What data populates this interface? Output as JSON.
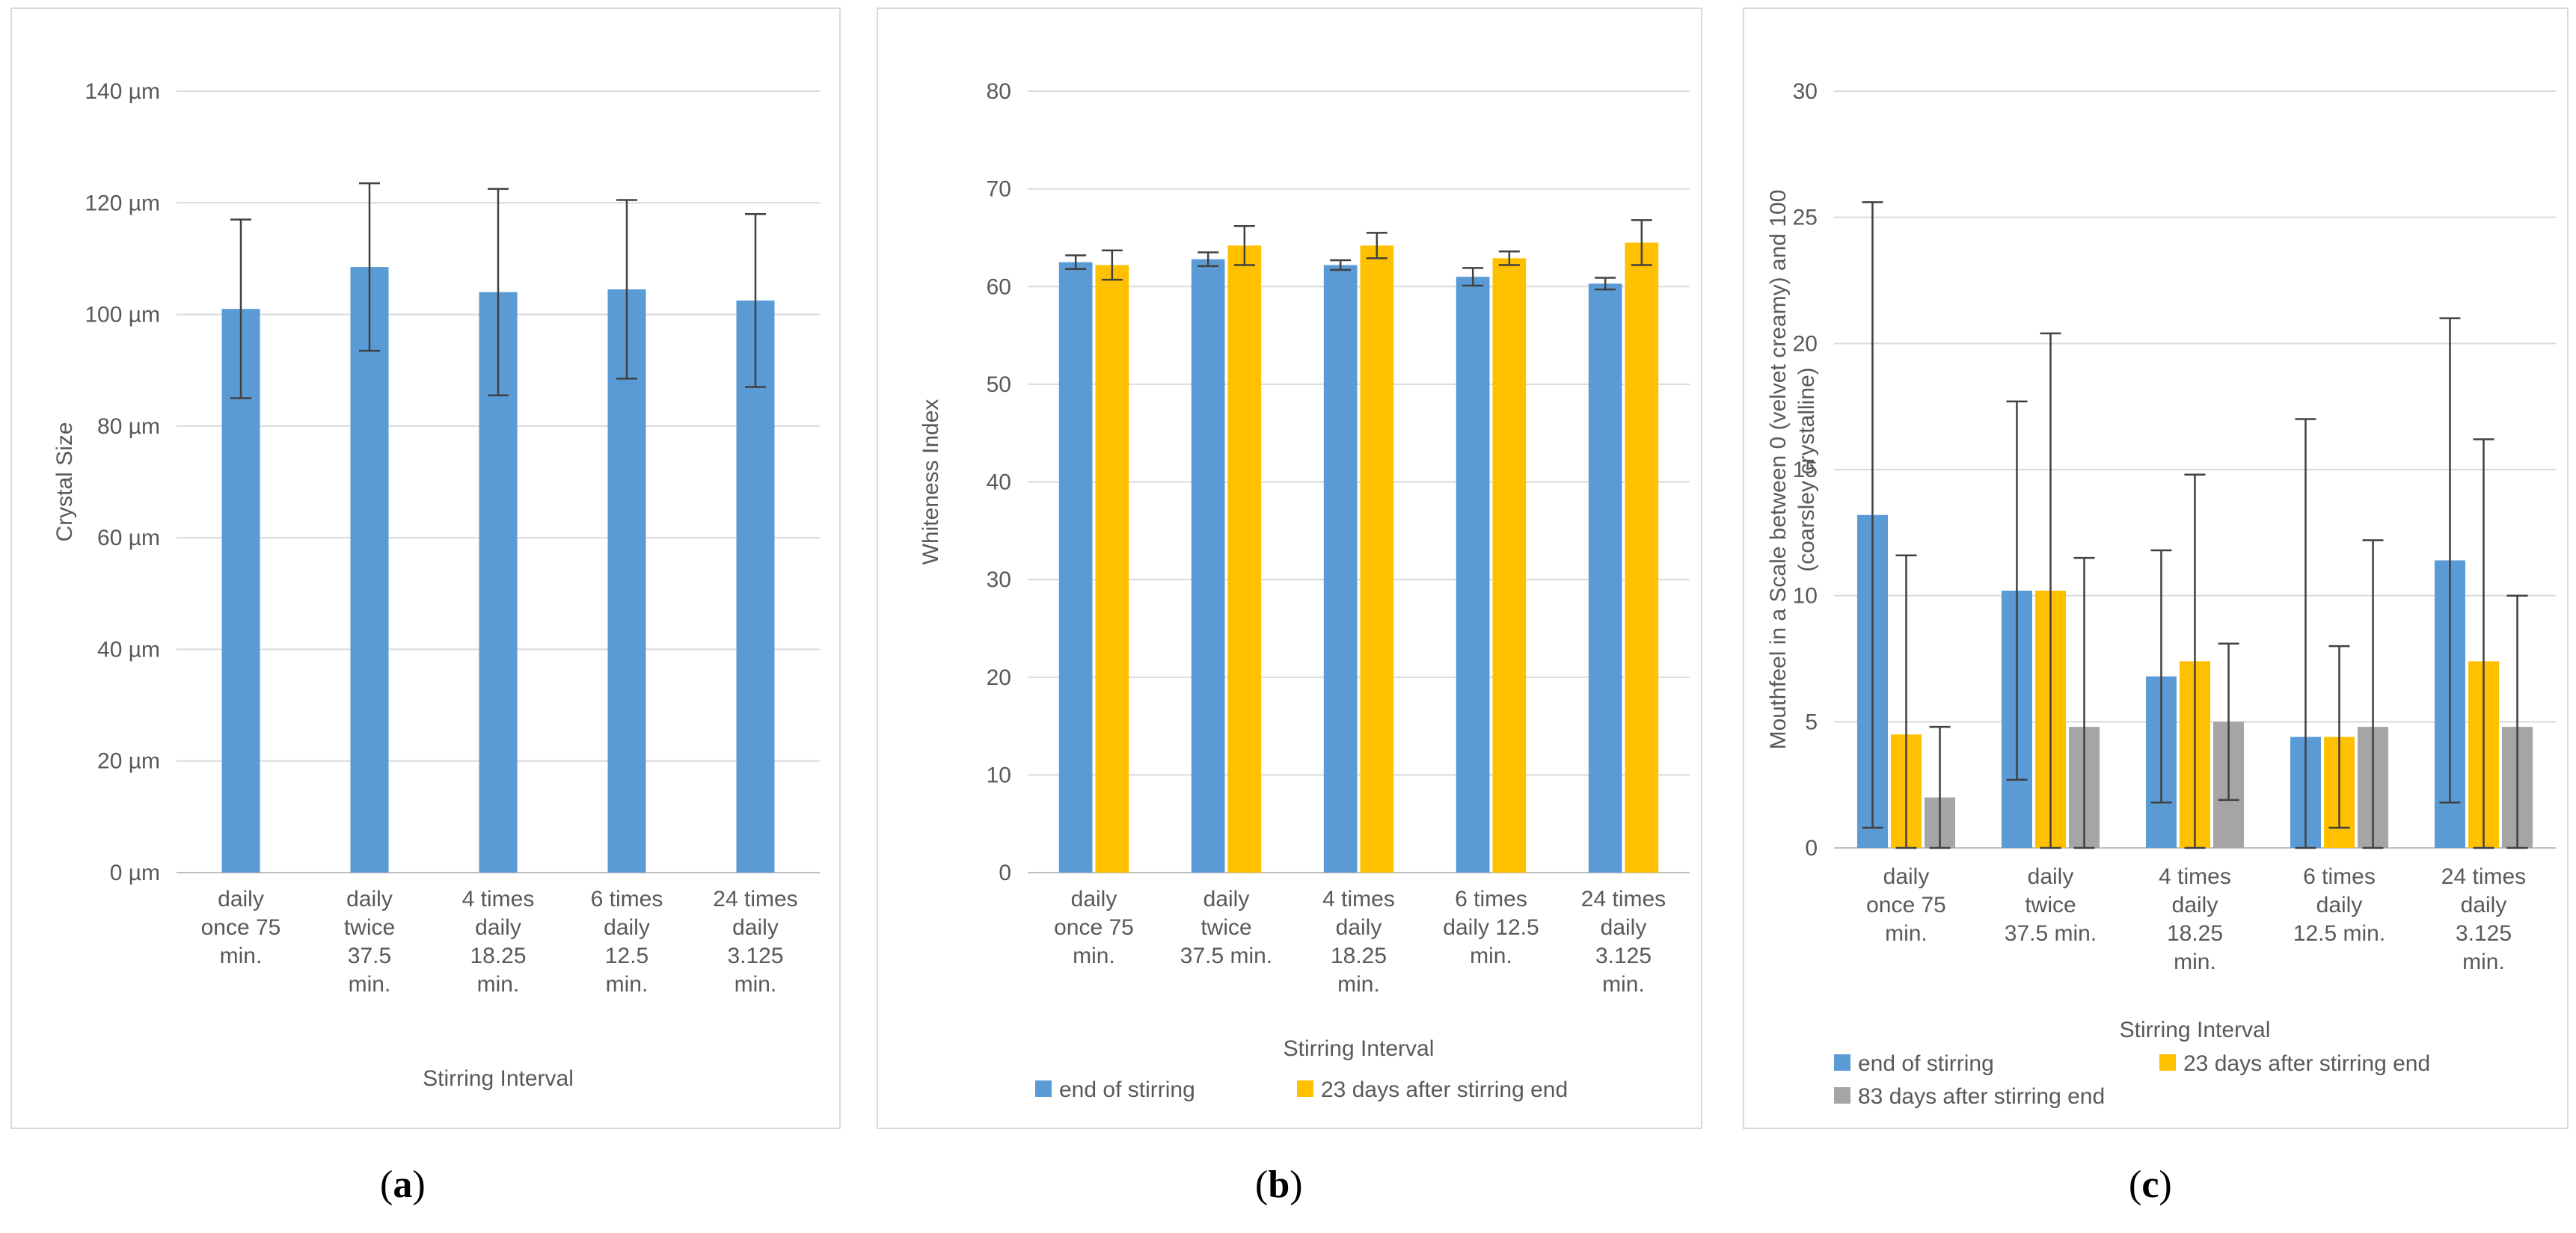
{
  "chart_data": [
    {
      "panel": "a",
      "type": "bar",
      "ylabel": "Crystal Size",
      "xlabel": "Stirring Interval",
      "ylim": [
        0,
        140
      ],
      "yticks": [
        0,
        20,
        40,
        60,
        80,
        100,
        120,
        140
      ],
      "ytick_suffix": " µm",
      "categories": [
        [
          "daily",
          "once 75",
          "min."
        ],
        [
          "daily",
          "twice",
          "37.5",
          "min."
        ],
        [
          "4 times",
          "daily",
          "18.25",
          "min."
        ],
        [
          "6 times",
          "daily",
          "12.5",
          "min."
        ],
        [
          "24 times",
          "daily",
          "3.125",
          "min."
        ]
      ],
      "series": [
        {
          "name": "Crystal Size",
          "color": "#5b9bd5",
          "values": [
            101,
            108.5,
            104,
            104.5,
            102.5
          ],
          "errors": [
            16,
            15,
            18.5,
            16,
            15.5
          ]
        }
      ],
      "legend": false
    },
    {
      "panel": "b",
      "type": "bar",
      "ylabel": "Whiteness Index",
      "xlabel": "Stirring Interval",
      "ylim": [
        0,
        80
      ],
      "yticks": [
        0,
        10,
        20,
        30,
        40,
        50,
        60,
        70,
        80
      ],
      "ytick_suffix": "",
      "categories": [
        [
          "daily",
          "once 75",
          "min."
        ],
        [
          "daily",
          "twice",
          "37.5 min."
        ],
        [
          "4 times",
          "daily",
          "18.25",
          "min."
        ],
        [
          "6 times",
          "daily 12.5",
          "min."
        ],
        [
          "24 times",
          "daily",
          "3.125",
          "min."
        ]
      ],
      "series": [
        {
          "name": "end of stirring",
          "color": "#5b9bd5",
          "values": [
            62.5,
            62.8,
            62.2,
            61,
            60.3
          ],
          "errors": [
            0.7,
            0.7,
            0.5,
            0.9,
            0.6
          ]
        },
        {
          "name": "23 days after stirring end",
          "color": "#ffc000",
          "values": [
            62.2,
            64.2,
            64.2,
            62.9,
            64.5
          ],
          "errors": [
            1.5,
            2,
            1.3,
            0.7,
            2.3
          ]
        }
      ],
      "legend": true,
      "legend_position": "bottom"
    },
    {
      "panel": "c",
      "type": "bar",
      "ylabel": "Mouthfeel in a Scale between  0 (velvet creamy) and 100 (coarsley crystalline)",
      "ylabel_lines": [
        "Mouthfeel in a Scale between  0 (velvet creamy) and 100",
        "(coarsley crystalline)"
      ],
      "xlabel": "Stirring Interval",
      "ylim": [
        0,
        30
      ],
      "yticks": [
        0,
        5,
        10,
        15,
        20,
        25,
        30
      ],
      "ytick_suffix": "",
      "categories": [
        [
          "daily",
          "once 75",
          "min."
        ],
        [
          "daily",
          "twice",
          "37.5 min."
        ],
        [
          "4 times",
          "daily",
          "18.25",
          "min."
        ],
        [
          "6 times",
          "daily",
          "12.5 min."
        ],
        [
          "24 times",
          "daily",
          "3.125",
          "min."
        ]
      ],
      "series": [
        {
          "name": "end of stirring",
          "color": "#5b9bd5",
          "values": [
            13.2,
            10.2,
            6.8,
            4.4,
            11.4
          ],
          "errors": [
            12.4,
            7.5,
            5,
            12.6,
            9.6
          ]
        },
        {
          "name": "23 days after stirring end",
          "color": "#ffc000",
          "values": [
            4.5,
            10.2,
            7.4,
            4.4,
            7.4
          ],
          "errors": [
            7.1,
            10.2,
            7.4,
            3.6,
            8.8
          ]
        },
        {
          "name": "83 days after stirring end",
          "color": "#a5a5a5",
          "values": [
            2,
            4.8,
            5,
            4.8,
            4.8
          ],
          "errors": [
            2.8,
            6.7,
            3.1,
            7.4,
            5.2
          ]
        }
      ],
      "legend": true,
      "legend_position": "bottom"
    }
  ],
  "panel_labels": [
    "(a)",
    "(b)",
    "(c)"
  ]
}
